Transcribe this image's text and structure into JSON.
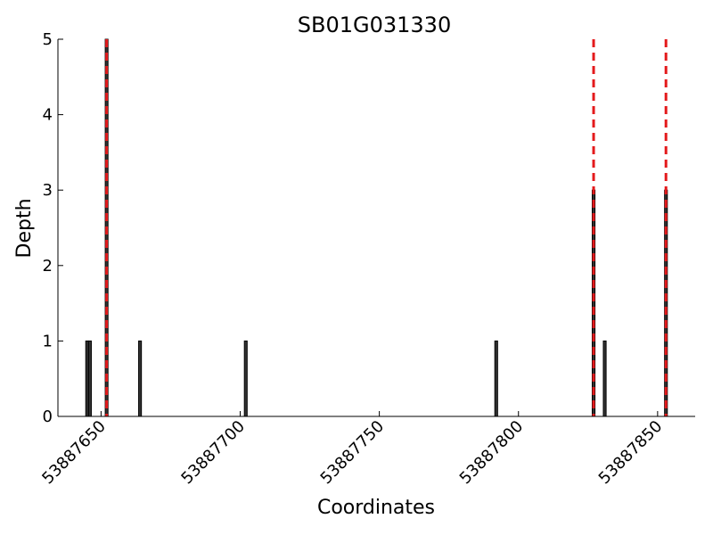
{
  "chart_data": {
    "type": "bar",
    "title": "SB01G031330",
    "xlabel": "Coordinates",
    "ylabel": "Depth",
    "x": [
      53887645,
      53887646,
      53887652,
      53887664,
      53887702,
      53887792,
      53887827,
      53887831,
      53887853
    ],
    "values": [
      1,
      1,
      5,
      1,
      1,
      1,
      3,
      1,
      3
    ],
    "color": "#333333",
    "vlines": {
      "x": [
        53887652,
        53887827,
        53887853
      ],
      "color": "#e41a1c"
    },
    "xlim": [
      53887634.5,
      53887863.5
    ],
    "xticks": [
      53887650,
      53887700,
      53887750,
      53887800,
      53887850
    ],
    "ylim": [
      0,
      5
    ],
    "yticks": [
      0,
      1,
      2,
      3,
      4,
      5
    ]
  }
}
